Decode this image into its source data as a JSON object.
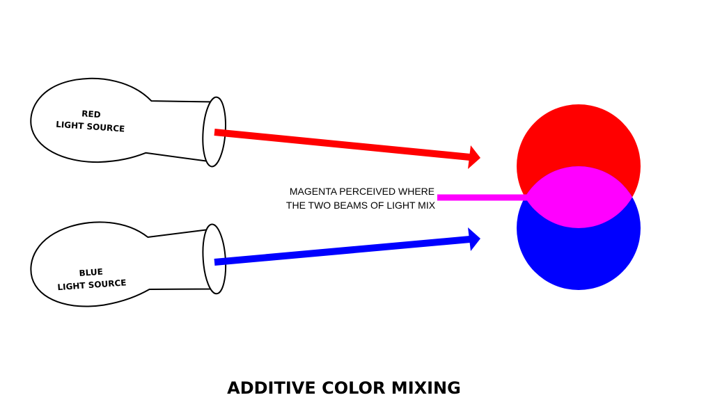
{
  "colors": {
    "red": "#ff0000",
    "blue": "#0000ff",
    "magenta": "#ff00ff",
    "outline": "#000000",
    "background": "#ffffff"
  },
  "red_source": {
    "line1": "RED",
    "line2": "LIGHT SOURCE"
  },
  "blue_source": {
    "line1": "BLUE",
    "line2": "LIGHT SOURCE"
  },
  "annotation": {
    "line1": "MAGENTA PERCEIVED WHERE",
    "line2": "THE TWO BEAMS OF LIGHT MIX"
  },
  "title": "ADDITIVE COLOR MIXING"
}
